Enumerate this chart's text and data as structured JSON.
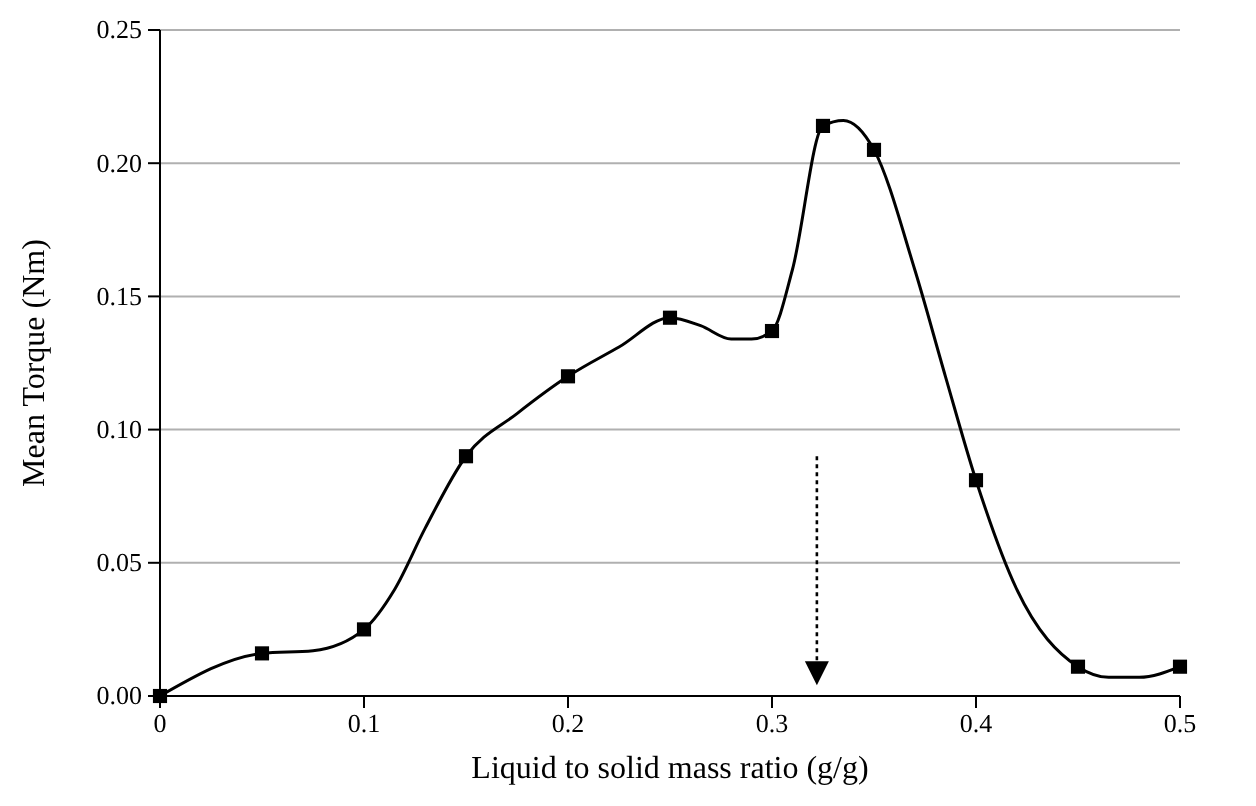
{
  "chart_data": {
    "type": "line",
    "xlabel": "Liquid to solid mass ratio (g/g)",
    "ylabel": "Mean Torque (Nm)",
    "xlim": [
      0,
      0.5
    ],
    "xticks": [
      0,
      0.1,
      0.2,
      0.3,
      0.4,
      0.5
    ],
    "ylim": [
      0,
      0.25
    ],
    "yticks": [
      {
        "value": 0,
        "label": "0.00"
      },
      {
        "value": 0.05,
        "label": "0.05"
      },
      {
        "value": 0.1,
        "label": "0.10"
      },
      {
        "value": 0.15,
        "label": "0.15"
      },
      {
        "value": 0.2,
        "label": "0.20"
      },
      {
        "value": 0.25,
        "label": "0.25"
      }
    ],
    "grid": "y",
    "series": [
      {
        "color": "#000000",
        "marker": "none",
        "line_style": "solid",
        "x": [
          0,
          0.05,
          0.075,
          0.1,
          0.115,
          0.13,
          0.15,
          0.175,
          0.2,
          0.225,
          0.25,
          0.265,
          0.28,
          0.29,
          0.3,
          0.31,
          0.325,
          0.335,
          0.35,
          0.37,
          0.385,
          0.4,
          0.42,
          0.45,
          0.465,
          0.48,
          0.5
        ],
        "values": [
          0,
          0.016,
          0.017,
          0.025,
          0.04,
          0.063,
          0.09,
          0.106,
          0.12,
          0.131,
          0.142,
          0.139,
          0.134,
          0.134,
          0.137,
          0.16,
          0.214,
          0.216,
          0.205,
          0.16,
          0.12,
          0.081,
          0.04,
          0.011,
          0.007,
          0.007,
          0.011
        ]
      },
      {
        "type": "scatter",
        "color": "#000000",
        "marker": "square",
        "x": [
          0,
          0.05,
          0.1,
          0.15,
          0.2,
          0.25,
          0.3,
          0.325,
          0.35,
          0.4,
          0.45,
          0.5
        ],
        "values": [
          0,
          0.016,
          0.025,
          0.09,
          0.12,
          0.142,
          0.137,
          0.214,
          0.205,
          0.081,
          0.011,
          0.011
        ]
      }
    ]
  }
}
